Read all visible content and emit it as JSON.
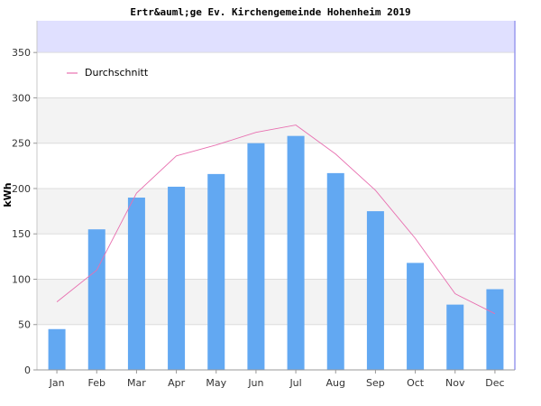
{
  "chart_data": {
    "type": "bar",
    "title": "Ertr&auml;ge Ev. Kirchengemeinde Hohenheim 2019",
    "xlabel": "",
    "ylabel": "kWh",
    "ylim": [
      0,
      385
    ],
    "yticks": [
      0,
      50,
      100,
      150,
      200,
      250,
      300,
      350
    ],
    "grid": true,
    "legend_position": "top-left",
    "categories": [
      "Jan",
      "Feb",
      "Mar",
      "Apr",
      "May",
      "Jun",
      "Jul",
      "Aug",
      "Sep",
      "Oct",
      "Nov",
      "Dec"
    ],
    "series": [
      {
        "type": "bar",
        "values": [
          45,
          155,
          190,
          202,
          216,
          250,
          258,
          217,
          175,
          118,
          72,
          89
        ],
        "color": "#62a8f2"
      },
      {
        "type": "line",
        "name": "Durchschnitt",
        "values": [
          75,
          110,
          195,
          236,
          248,
          262,
          270,
          238,
          198,
          145,
          84,
          62
        ],
        "color": "#e870b0"
      }
    ]
  }
}
